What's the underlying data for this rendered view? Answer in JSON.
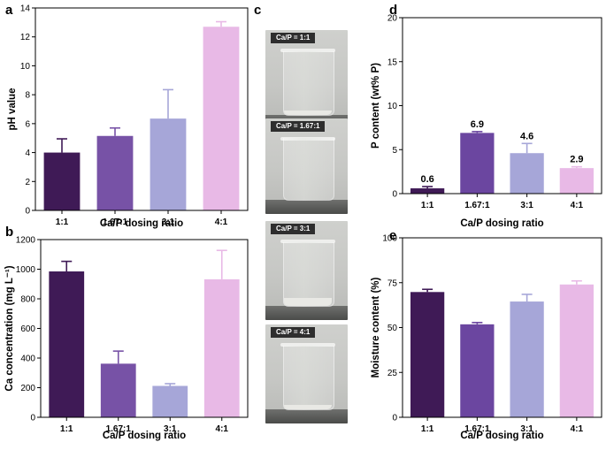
{
  "panel_labels": {
    "a": "a",
    "b": "b",
    "c": "c",
    "d": "d",
    "e": "e"
  },
  "chart_data": [
    {
      "id": "a",
      "type": "bar",
      "categories": [
        "1:1",
        "1.67:1",
        "3:1",
        "4:1"
      ],
      "values": [
        4.0,
        5.15,
        6.35,
        12.7
      ],
      "errors": [
        0.95,
        0.55,
        2.0,
        0.35
      ],
      "ylabel": "pH value",
      "xlabel": "Ca/P dosing ratio",
      "ylim": [
        0,
        14
      ],
      "yticks": [
        0,
        2,
        4,
        6,
        8,
        10,
        12,
        14
      ],
      "colors": [
        "#3f1a56",
        "#7752a6",
        "#a6a6d8",
        "#e8b9e6"
      ]
    },
    {
      "id": "b",
      "type": "bar",
      "categories": [
        "1:1",
        "1.67:1",
        "3:1",
        "4:1"
      ],
      "values": [
        985,
        362,
        212,
        932
      ],
      "errors": [
        68,
        85,
        15,
        195
      ],
      "ylabel": "Ca concentration (mg L⁻¹)",
      "xlabel": "Ca/P dosing ratio",
      "ylim": [
        0,
        1200
      ],
      "yticks": [
        0,
        200,
        400,
        600,
        800,
        1000,
        1200
      ],
      "colors": [
        "#3f1a56",
        "#7752a6",
        "#a6a6d8",
        "#e8b9e6"
      ]
    },
    {
      "id": "d",
      "type": "bar",
      "categories": [
        "1:1",
        "1.67:1",
        "3:1",
        "4:1"
      ],
      "values": [
        0.6,
        6.9,
        4.6,
        2.9
      ],
      "errors": [
        0.2,
        0.15,
        1.1,
        0.15
      ],
      "data_labels": [
        "0.6",
        "6.9",
        "4.6",
        "2.9"
      ],
      "ylabel": "P content (wt% P)",
      "xlabel": "Ca/P dosing ratio",
      "ylim": [
        0,
        20
      ],
      "yticks": [
        0,
        5,
        10,
        15,
        20
      ],
      "colors": [
        "#3f1a56",
        "#6b46a0",
        "#a6a6d8",
        "#e8b9e6"
      ]
    },
    {
      "id": "e",
      "type": "bar",
      "categories": [
        "1:1",
        "1.67:1",
        "3:1",
        "4:1"
      ],
      "values": [
        69.8,
        51.8,
        64.5,
        74.0
      ],
      "errors": [
        1.5,
        1.0,
        4.0,
        2.0
      ],
      "ylabel": "Moisture content (%)",
      "xlabel": "Ca/P dosing ratio",
      "ylim": [
        0,
        100
      ],
      "yticks": [
        0,
        25,
        50,
        75,
        100
      ],
      "colors": [
        "#3f1a56",
        "#6b46a0",
        "#a6a6d8",
        "#e8b9e6"
      ]
    }
  ],
  "photos": [
    {
      "label": "Ca/P = 1:1",
      "sediment": "low"
    },
    {
      "label": "Ca/P = 1.67:1",
      "sediment": "none"
    },
    {
      "label": "Ca/P = 3:1",
      "sediment": "medium"
    },
    {
      "label": "Ca/P = 4:1",
      "sediment": "low"
    }
  ]
}
